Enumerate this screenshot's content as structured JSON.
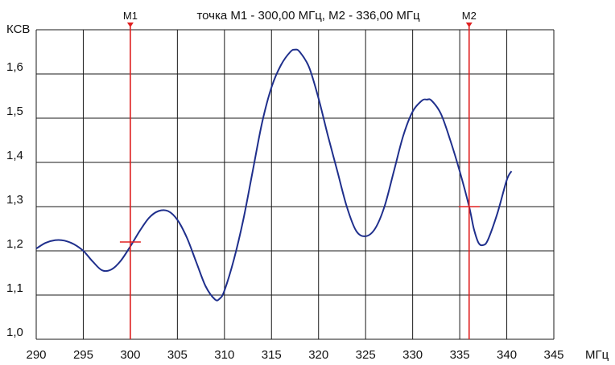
{
  "chart_data": {
    "type": "line",
    "title": "точка М1 - 300,00 МГц, М2 - 336,00 МГц",
    "ylabel": "КСВ",
    "xlabel": "МГц",
    "xlim": [
      290,
      345
    ],
    "ylim": [
      1.0,
      1.7
    ],
    "x_ticks": [
      "290",
      "295",
      "300",
      "305",
      "310",
      "315",
      "320",
      "325",
      "330",
      "335",
      "340",
      "345"
    ],
    "y_ticks": [
      "1,0",
      "1,1",
      "1,2",
      "1,3",
      "1,4",
      "1,5",
      "1,6"
    ],
    "grid": true,
    "series": [
      {
        "color": "#1f2f8c",
        "points": [
          [
            290.0,
            1.205
          ],
          [
            291.0,
            1.218
          ],
          [
            292.0,
            1.224
          ],
          [
            293.0,
            1.223
          ],
          [
            294.0,
            1.215
          ],
          [
            295.0,
            1.2
          ],
          [
            296.0,
            1.176
          ],
          [
            297.0,
            1.156
          ],
          [
            298.0,
            1.158
          ],
          [
            299.0,
            1.178
          ],
          [
            300.0,
            1.21
          ],
          [
            301.0,
            1.245
          ],
          [
            302.0,
            1.275
          ],
          [
            303.0,
            1.29
          ],
          [
            304.0,
            1.29
          ],
          [
            305.0,
            1.27
          ],
          [
            306.0,
            1.23
          ],
          [
            307.0,
            1.175
          ],
          [
            308.0,
            1.12
          ],
          [
            309.0,
            1.09
          ],
          [
            309.5,
            1.092
          ],
          [
            310.0,
            1.11
          ],
          [
            311.0,
            1.18
          ],
          [
            312.0,
            1.27
          ],
          [
            313.0,
            1.38
          ],
          [
            314.0,
            1.49
          ],
          [
            315.0,
            1.57
          ],
          [
            316.0,
            1.62
          ],
          [
            317.0,
            1.65
          ],
          [
            317.5,
            1.655
          ],
          [
            318.0,
            1.65
          ],
          [
            319.0,
            1.615
          ],
          [
            320.0,
            1.545
          ],
          [
            321.0,
            1.46
          ],
          [
            322.0,
            1.38
          ],
          [
            323.0,
            1.3
          ],
          [
            324.0,
            1.245
          ],
          [
            325.0,
            1.233
          ],
          [
            326.0,
            1.25
          ],
          [
            327.0,
            1.3
          ],
          [
            328.0,
            1.38
          ],
          [
            329.0,
            1.46
          ],
          [
            330.0,
            1.515
          ],
          [
            331.0,
            1.54
          ],
          [
            331.5,
            1.542
          ],
          [
            332.0,
            1.54
          ],
          [
            333.0,
            1.51
          ],
          [
            334.0,
            1.45
          ],
          [
            335.0,
            1.38
          ],
          [
            336.0,
            1.3
          ],
          [
            336.5,
            1.25
          ],
          [
            337.0,
            1.218
          ],
          [
            337.5,
            1.213
          ],
          [
            338.0,
            1.225
          ],
          [
            339.0,
            1.285
          ],
          [
            340.0,
            1.36
          ],
          [
            340.5,
            1.38
          ]
        ]
      }
    ],
    "markers": [
      {
        "label": "M1",
        "x": 300.0,
        "y": 1.22,
        "color": "#e02020"
      },
      {
        "label": "M2",
        "x": 336.0,
        "y": 1.3,
        "color": "#e02020"
      }
    ]
  }
}
